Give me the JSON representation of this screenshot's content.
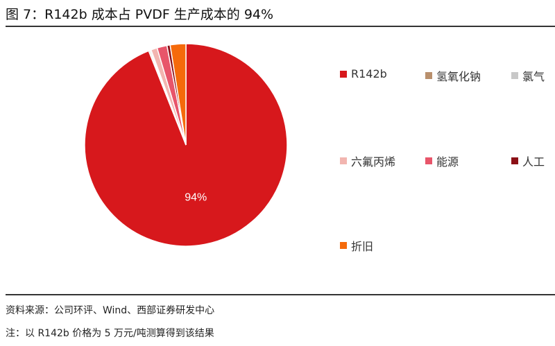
{
  "figure": {
    "title": "图 7：R142b 成本占 PVDF 生产成本的 94%",
    "source": "资料来源：公司环评、Wind、西部证券研发中心",
    "note": "注：以 R142b 价格为 5 万元/吨测算得到该结果"
  },
  "chart_data": {
    "type": "pie",
    "categories": [
      "R142b",
      "氢氧化钠",
      "氯气",
      "六氟丙烯",
      "能源",
      "人工",
      "折旧"
    ],
    "values": [
      94.0,
      0.2,
      0.2,
      1.0,
      1.6,
      0.5,
      2.5
    ],
    "colors": [
      "#d7181c",
      "#b9906d",
      "#c8c8c8",
      "#f2b5b0",
      "#e8556a",
      "#8b0f16",
      "#f56a0b"
    ],
    "data_labels": [
      "94%"
    ],
    "legend_position": "right"
  }
}
